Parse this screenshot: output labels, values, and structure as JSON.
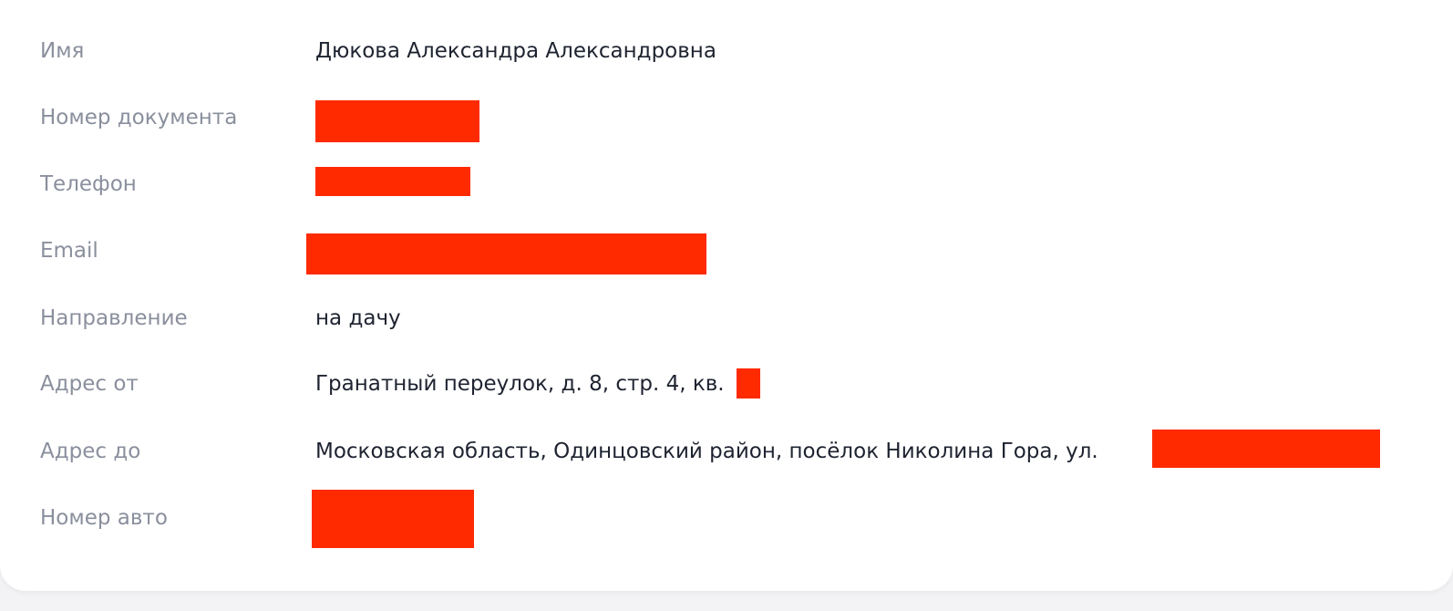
{
  "colors": {
    "redaction": "#ff2a00",
    "label": "#8a8f9d",
    "value": "#1e2330"
  },
  "fields": [
    {
      "label": "Имя",
      "value": "Дюкова Александра Александровна"
    },
    {
      "label": "Номер документа",
      "value": ""
    },
    {
      "label": "Телефон",
      "value": ""
    },
    {
      "label": "Email",
      "value": ""
    },
    {
      "label": "Направление",
      "value": "на дачу"
    },
    {
      "label": "Адрес от",
      "value": "Гранатный переулок, д. 8, стр. 4, кв."
    },
    {
      "label": "Адрес до",
      "value": "Московская область, Одинцовский район, посёлок Николина Гора, ул."
    },
    {
      "label": "Номер авто",
      "value": ""
    }
  ]
}
